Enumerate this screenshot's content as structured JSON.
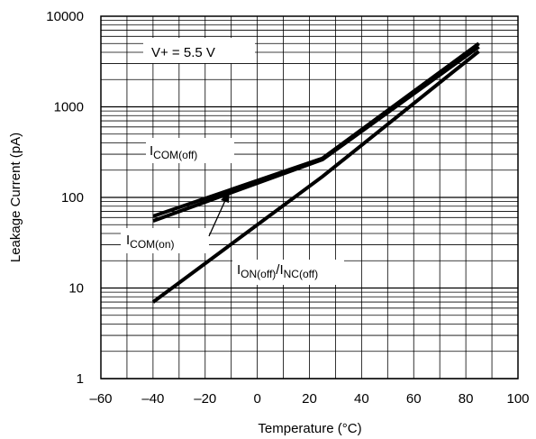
{
  "chart_data": {
    "type": "line",
    "title": "",
    "xlabel": "Temperature (°C)",
    "ylabel": "Leakage Current (pA)",
    "xlim": [
      -60,
      100
    ],
    "ylim": [
      1,
      10000
    ],
    "y_scale": "log",
    "x_ticks": [
      "–60",
      "–40",
      "–20",
      "0",
      "20",
      "40",
      "60",
      "80",
      "100"
    ],
    "y_ticks": [
      "1",
      "10",
      "100",
      "1000",
      "10000"
    ],
    "grid": true,
    "annotations": {
      "supply": "V+ = 5.5 V",
      "com_off": {
        "main": "I",
        "sub": "COM(off)"
      },
      "com_on": {
        "main": "I",
        "sub": "COM(on)"
      },
      "on_off": {
        "main1": "I",
        "sub1": "ON(off)",
        "sep": "/",
        "main2": "I",
        "sub2": "NC(off)"
      }
    },
    "series": [
      {
        "name": "I_COM(off)",
        "x": [
          -40,
          25,
          85
        ],
        "y": [
          62,
          270,
          5000
        ]
      },
      {
        "name": "I_COM(on)",
        "x": [
          -40,
          25,
          85
        ],
        "y": [
          55,
          262,
          4600
        ]
      },
      {
        "name": "I_ON(off)/I_NC(off)",
        "x": [
          -40,
          25,
          85
        ],
        "y": [
          7,
          170,
          4100
        ]
      }
    ]
  }
}
